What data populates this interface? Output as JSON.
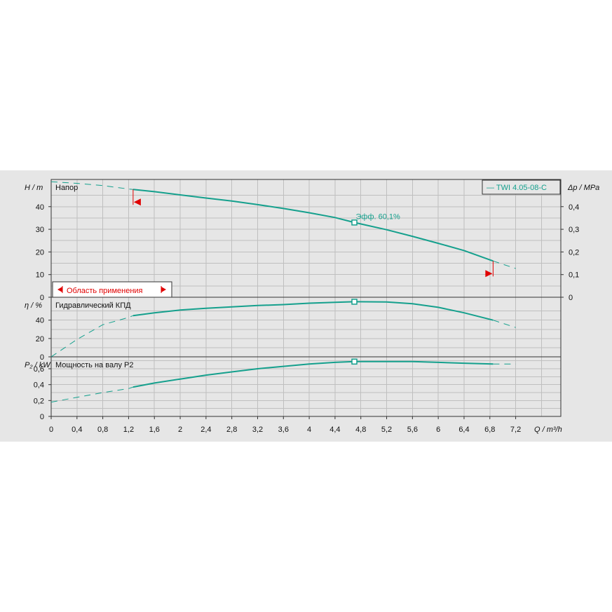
{
  "chart_data": {
    "type": "line",
    "legend": {
      "label": "— TWI 4.05-08-C",
      "placement": "top-right"
    },
    "x": {
      "label": "Q / m³/h",
      "range": [
        0,
        7.9
      ],
      "ticks": [
        0,
        0.4,
        0.8,
        1.2,
        1.6,
        2,
        2.4,
        2.8,
        3.2,
        3.6,
        4,
        4.4,
        4.8,
        5.2,
        5.6,
        6,
        6.4,
        6.8,
        7.2
      ],
      "tick_labels": [
        "0",
        "0,4",
        "0,8",
        "1,2",
        "1,6",
        "2",
        "2,4",
        "2,8",
        "3,2",
        "3,6",
        "4",
        "4,4",
        "4,8",
        "5,2",
        "5,6",
        "6",
        "6,4",
        "6,8",
        "7,2"
      ]
    },
    "operating_range": {
      "label": "Область применения",
      "q_min": 1.27,
      "q_max": 6.85
    },
    "duty_point": {
      "q": 4.7,
      "label": "Эфф.  60,1%"
    },
    "panels": [
      {
        "id": "head",
        "title": "Напор",
        "ylabel": "H / m",
        "ylim": [
          0,
          52
        ],
        "ticks": [
          0,
          10,
          20,
          30,
          40
        ],
        "right_axis": {
          "label": "Δp / MPa",
          "range": [
            0,
            0.52
          ],
          "ticks": [
            0,
            0.1,
            0.2,
            0.3,
            0.4
          ],
          "tick_labels": [
            "0",
            "0,1",
            "0,2",
            "0,3",
            "0,4"
          ]
        },
        "series": {
          "x": [
            0,
            0.4,
            0.8,
            1.2,
            1.27,
            1.6,
            2,
            2.4,
            2.8,
            3.2,
            3.6,
            4,
            4.4,
            4.7,
            5.2,
            5.6,
            6,
            6.4,
            6.85,
            7.2
          ],
          "y": [
            51,
            50.3,
            49.3,
            47.8,
            47.6,
            46.6,
            45.2,
            43.8,
            42.5,
            40.9,
            39.2,
            37.3,
            35.2,
            33,
            29.8,
            26.9,
            23.8,
            20.6,
            16,
            12.7
          ]
        },
        "duty_value": 33
      },
      {
        "id": "efficiency",
        "title": "Гидравлический КПД",
        "ylabel": "η / %",
        "ylim": [
          0,
          65
        ],
        "ticks": [
          0,
          20,
          40
        ],
        "series": {
          "x": [
            0,
            0.4,
            0.8,
            1.2,
            1.27,
            1.6,
            2,
            2.4,
            2.8,
            3.2,
            3.6,
            4,
            4.4,
            4.7,
            5.2,
            5.6,
            6,
            6.4,
            6.85,
            7.2
          ],
          "y": [
            0,
            19,
            35,
            43,
            45,
            48,
            51,
            53,
            54.5,
            56,
            57,
            58.5,
            59.5,
            60.1,
            59.8,
            58,
            54,
            48,
            40,
            32
          ]
        },
        "duty_value": 60.1
      },
      {
        "id": "power",
        "title": "Мощность на валу P2",
        "ylabel": "P₂ / kW",
        "ylim": [
          0,
          0.75
        ],
        "ticks": [
          0,
          0.2,
          0.4,
          0.6
        ],
        "tick_labels": [
          "0",
          "0,2",
          "0,4",
          "0,6"
        ],
        "series": {
          "x": [
            0,
            0.4,
            0.8,
            1.2,
            1.27,
            1.6,
            2,
            2.4,
            2.8,
            3.2,
            3.6,
            4,
            4.4,
            4.7,
            5.2,
            5.6,
            6,
            6.4,
            6.85,
            7.2
          ],
          "y": [
            0.18,
            0.24,
            0.3,
            0.35,
            0.37,
            0.42,
            0.47,
            0.52,
            0.56,
            0.6,
            0.63,
            0.66,
            0.68,
            0.69,
            0.69,
            0.69,
            0.68,
            0.67,
            0.66,
            0.66
          ]
        },
        "duty_value": 0.69
      }
    ],
    "colors": {
      "curve": "#15a08d",
      "range_marker": "#e00000",
      "grid": "#bfbfbf",
      "background": "#e6e6e6"
    }
  }
}
